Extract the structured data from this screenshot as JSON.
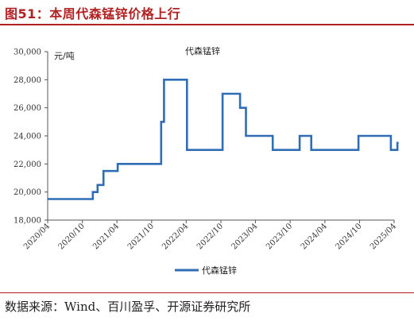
{
  "figure": {
    "title": "图51：本周代森锰锌价格上行",
    "source": "数据来源：Wind、百川盈孚、开源证券研究所"
  },
  "colors": {
    "accent": "#b22222",
    "series": "#2f6db5"
  },
  "chart_data": {
    "type": "line",
    "title": "代森锰锌",
    "unit_label": "元/吨",
    "ylim": [
      18000,
      30000
    ],
    "y_ticks": [
      18000,
      20000,
      22000,
      24000,
      26000,
      28000,
      30000
    ],
    "y_tick_labels": [
      "18,000",
      "20,000",
      "22,000",
      "24,000",
      "26,000",
      "28,000",
      "30,000"
    ],
    "x_ticks": [
      "2020/04",
      "2020/10",
      "2021/04",
      "2021/10",
      "2022/04",
      "2022/10",
      "2023/04",
      "2023/10",
      "2024/04",
      "2024/10",
      "2025/04"
    ],
    "series": [
      {
        "name": "代森锰锌",
        "step": true,
        "points": [
          [
            "2020/04/01",
            19500
          ],
          [
            "2020/11/25",
            20000
          ],
          [
            "2020/12/20",
            20500
          ],
          [
            "2021/01/20",
            21500
          ],
          [
            "2021/04/05",
            22000
          ],
          [
            "2021/11/20",
            25000
          ],
          [
            "2021/12/05",
            28000
          ],
          [
            "2022/04/05",
            23000
          ],
          [
            "2022/10/10",
            27000
          ],
          [
            "2023/01/10",
            26000
          ],
          [
            "2023/02/10",
            24000
          ],
          [
            "2023/07/01",
            23000
          ],
          [
            "2023/11/20",
            24000
          ],
          [
            "2024/01/20",
            23000
          ],
          [
            "2024/09/25",
            24000
          ],
          [
            "2025/03/15",
            23000
          ],
          [
            "2025/04/18",
            23500
          ]
        ],
        "end": "2025/04/18"
      }
    ],
    "legend": {
      "position": "bottom-center",
      "label": "代森锰锌"
    }
  }
}
